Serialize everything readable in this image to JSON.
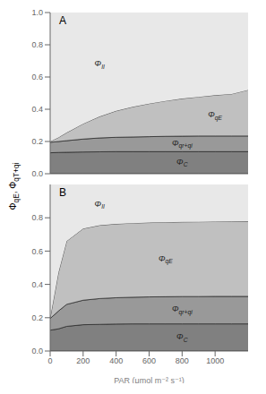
{
  "chart_data": [
    {
      "type": "area",
      "title": "A",
      "ylabel": "ΦqE, ΦqT+qi",
      "x": [
        0,
        50,
        100,
        200,
        300,
        400,
        500,
        600,
        700,
        800,
        900,
        1000,
        1100,
        1200
      ],
      "series": [
        {
          "name": "ΦC",
          "color": "#808080",
          "values": [
            0.13,
            0.132,
            0.133,
            0.135,
            0.136,
            0.137,
            0.137,
            0.137,
            0.137,
            0.137,
            0.137,
            0.137,
            0.137,
            0.137
          ]
        },
        {
          "name": "Φqr+qi",
          "color": "#999999",
          "values": [
            0.195,
            0.2,
            0.205,
            0.215,
            0.222,
            0.226,
            0.228,
            0.23,
            0.232,
            0.233,
            0.234,
            0.234,
            0.234,
            0.234
          ]
        },
        {
          "name": "ΦqE",
          "color": "#c0c0c0",
          "values": [
            0.2,
            0.225,
            0.255,
            0.31,
            0.355,
            0.39,
            0.415,
            0.435,
            0.452,
            0.466,
            0.477,
            0.487,
            0.495,
            0.52
          ]
        },
        {
          "name": "ΦII",
          "color": "#e8e8e8",
          "values": [
            1.0,
            1.0,
            1.0,
            1.0,
            1.0,
            1.0,
            1.0,
            1.0,
            1.0,
            1.0,
            1.0,
            1.0,
            1.0,
            1.0
          ]
        }
      ],
      "xlim": [
        0,
        1200
      ],
      "xticks": [
        0,
        200,
        400,
        600,
        800,
        1000
      ],
      "ylim": [
        0.0,
        1.0
      ],
      "yticks": [
        {
          "value": 0.0,
          "label": "0.0"
        },
        0.2,
        0.4,
        0.6,
        0.8,
        {
          "value": 1.0,
          "label": "1.0"
        }
      ],
      "tick_labels": "y"
    },
    {
      "type": "area",
      "title": "B",
      "xlabel": "PAR (μmol m⁻² s⁻¹)",
      "x": [
        0,
        50,
        100,
        200,
        300,
        400,
        500,
        600,
        700,
        800,
        900,
        1000,
        1100,
        1200
      ],
      "series": [
        {
          "name": "ΦC",
          "color": "#808080",
          "values": [
            0.125,
            0.133,
            0.148,
            0.158,
            0.16,
            0.162,
            0.163,
            0.163,
            0.163,
            0.163,
            0.163,
            0.163,
            0.163,
            0.163
          ]
        },
        {
          "name": "Φqr+qi",
          "color": "#999999",
          "values": [
            0.195,
            0.24,
            0.28,
            0.305,
            0.315,
            0.32,
            0.323,
            0.325,
            0.326,
            0.327,
            0.327,
            0.328,
            0.328,
            0.328
          ]
        },
        {
          "name": "ΦqE",
          "color": "#c0c0c0",
          "values": [
            0.2,
            0.47,
            0.66,
            0.735,
            0.755,
            0.763,
            0.768,
            0.771,
            0.773,
            0.775,
            0.776,
            0.777,
            0.778,
            0.779
          ]
        },
        {
          "name": "ΦII",
          "color": "#e8e8e8",
          "values": [
            1.0,
            1.0,
            1.0,
            1.0,
            1.0,
            1.0,
            1.0,
            1.0,
            1.0,
            1.0,
            1.0,
            1.0,
            1.0,
            1.0
          ]
        }
      ],
      "xlim": [
        0,
        1200
      ],
      "xticks": [
        0,
        200,
        400,
        600,
        800,
        1000
      ],
      "ylim": [
        0.0,
        1.0
      ],
      "yticks": [
        {
          "value": 0.0,
          "label": "0.0"
        },
        0.2,
        0.4,
        0.6,
        0.8
      ]
    }
  ]
}
